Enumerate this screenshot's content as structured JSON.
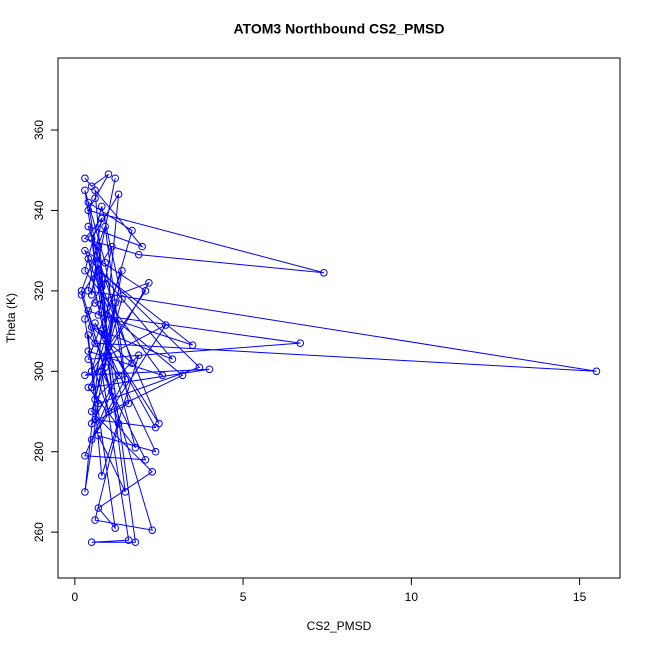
{
  "chart_data": {
    "type": "scatter",
    "title": "ATOM3 Northbound CS2_PMSD",
    "x_label": "CS2_PMSD",
    "y_label": "Theta (K)",
    "lines": true,
    "markers": true,
    "grid": false,
    "xlim": [
      -0.5,
      16.2
    ],
    "xticks": [
      0,
      5,
      10,
      15
    ],
    "ylim": [
      248.6,
      377.9
    ],
    "yticks": [
      260,
      280,
      300,
      320,
      340,
      360
    ],
    "series": [
      {
        "color": "#0000ff",
        "x": [
          0.3,
          0.5,
          1.0,
          0.6,
          0.4,
          7.4,
          1.9,
          0.3,
          0.8,
          0.4,
          15.5,
          0.6,
          0.2,
          1.1,
          0.7,
          6.7,
          0.4,
          1.4,
          0.9,
          0.3,
          4.0,
          0.5,
          1.2,
          0.6,
          2.4,
          0.8,
          0.3,
          0.7,
          3.7,
          0.4,
          1.0,
          2.7,
          0.5,
          1.5,
          0.9,
          0.2,
          2.3,
          0.6,
          1.3,
          0.4,
          3.5,
          0.7,
          1.8,
          0.5,
          1.6,
          0.8,
          2.1,
          0.3,
          1.1,
          0.6,
          2.0,
          0.4,
          1.7,
          0.5,
          2.9,
          0.9,
          0.3,
          1.2,
          0.7,
          2.3,
          0.5,
          1.4,
          0.8,
          0.3,
          2.6,
          0.4,
          1.0,
          3.2,
          0.6,
          2.2,
          0.4,
          1.8,
          0.9,
          1.3,
          0.5,
          1.5,
          0.7,
          2.4,
          0.6,
          2.5,
          0.8,
          0.4,
          1.7,
          0.5,
          2.1,
          0.3,
          1.1,
          0.6,
          1.9,
          0.8,
          0.4,
          1.3,
          0.5,
          1.6,
          0.9,
          0.3,
          1.0,
          0.7,
          0.5,
          1.2
        ],
        "values": [
          348,
          346,
          349,
          343,
          340,
          324.5,
          329,
          333,
          338,
          320,
          300,
          307,
          319,
          331,
          314,
          307,
          303,
          325,
          301,
          299,
          300.5,
          296,
          317,
          288,
          286,
          310,
          270,
          292,
          301,
          328,
          304,
          311.5,
          283,
          298,
          336,
          320,
          260.5,
          263,
          287,
          315,
          306.5,
          325,
          257.5,
          257.5,
          258,
          300,
          278,
          279,
          295,
          345,
          331,
          336,
          302,
          311,
          303,
          323,
          313,
          261,
          266,
          275,
          290,
          318,
          341,
          325,
          299,
          305,
          290,
          299,
          317,
          322,
          296,
          281,
          309,
          344,
          333,
          270,
          284,
          280,
          312,
          287,
          321,
          342,
          335,
          300,
          320,
          330,
          313,
          293,
          304,
          274,
          309,
          299,
          287,
          292,
          327,
          345,
          306,
          331,
          319,
          348
        ]
      }
    ]
  }
}
